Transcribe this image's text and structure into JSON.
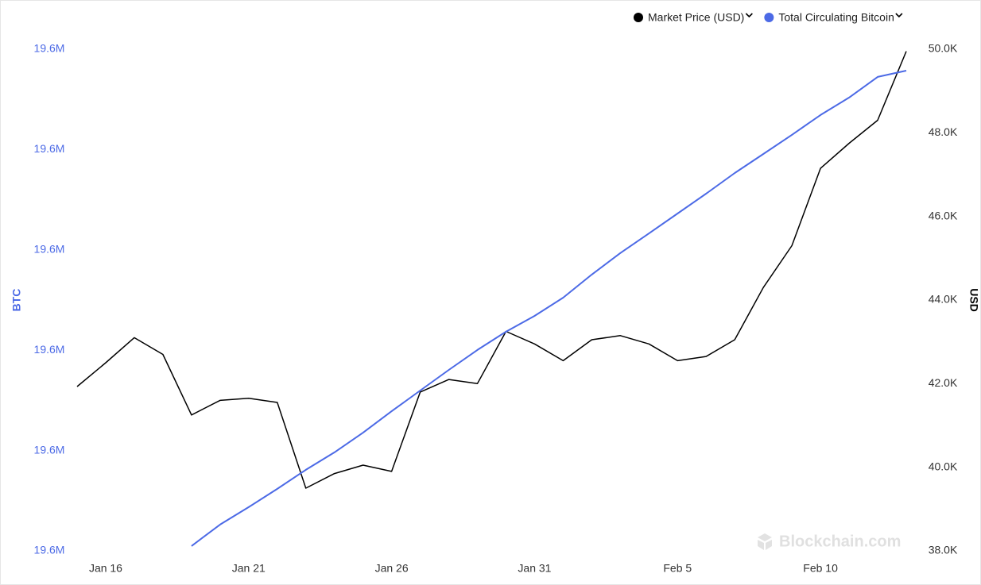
{
  "chart_data": {
    "type": "line",
    "x": [
      "Jan 15",
      "Jan 16",
      "Jan 17",
      "Jan 18",
      "Jan 19",
      "Jan 20",
      "Jan 21",
      "Jan 22",
      "Jan 23",
      "Jan 24",
      "Jan 25",
      "Jan 26",
      "Jan 27",
      "Jan 28",
      "Jan 29",
      "Jan 30",
      "Jan 31",
      "Feb 1",
      "Feb 2",
      "Feb 3",
      "Feb 4",
      "Feb 5",
      "Feb 6",
      "Feb 7",
      "Feb 8",
      "Feb 9",
      "Feb 10",
      "Feb 11",
      "Feb 12",
      "Feb 13"
    ],
    "xticks": [
      "Jan 16",
      "Jan 21",
      "Jan 26",
      "Jan 31",
      "Feb 5",
      "Feb 10"
    ],
    "series": [
      {
        "name": "Market Price (USD)",
        "color": "#000000",
        "axis": "y2",
        "values": [
          41930,
          42500,
          43100,
          42700,
          41250,
          41600,
          41650,
          41550,
          39500,
          39850,
          40050,
          39900,
          41800,
          42100,
          42000,
          43250,
          42950,
          42550,
          43050,
          43150,
          42950,
          42550,
          42650,
          43050,
          44300,
          45300,
          47150,
          47750,
          48300,
          49950
        ]
      },
      {
        "name": "Total Circulating Bitcoin",
        "color": "#4c6ae6",
        "values": [
          null,
          null,
          null,
          null,
          19600240,
          19601310,
          19602180,
          19603090,
          19604040,
          19604910,
          19605890,
          19606960,
          19607990,
          19609020,
          19610010,
          19610920,
          19611710,
          19612620,
          19613770,
          19614840,
          19615820,
          19616810,
          19617800,
          19618830,
          19619780,
          19620730,
          19621720,
          19622590,
          19623620,
          19623930
        ]
      }
    ],
    "ylabel": "BTC",
    "ylim": [
      19600000,
      19625000
    ],
    "yticks": [
      {
        "value": 19600000,
        "label": "19.6M"
      },
      {
        "value": 19605000,
        "label": "19.6M"
      },
      {
        "value": 19610000,
        "label": "19.6M"
      },
      {
        "value": 19615000,
        "label": "19.6M"
      },
      {
        "value": 19620000,
        "label": "19.6M"
      },
      {
        "value": 19625000,
        "label": "19.6M"
      }
    ],
    "y2label": "USD",
    "y2lim": [
      38000,
      50000
    ],
    "y2ticks": [
      {
        "value": 38000,
        "label": "38.0K"
      },
      {
        "value": 40000,
        "label": "40.0K"
      },
      {
        "value": 42000,
        "label": "42.0K"
      },
      {
        "value": 44000,
        "label": "44.0K"
      },
      {
        "value": 46000,
        "label": "46.0K"
      },
      {
        "value": 48000,
        "label": "48.0K"
      },
      {
        "value": 50000,
        "label": "50.0K"
      }
    ],
    "watermark": "Blockchain.com",
    "legend": "top-right"
  }
}
